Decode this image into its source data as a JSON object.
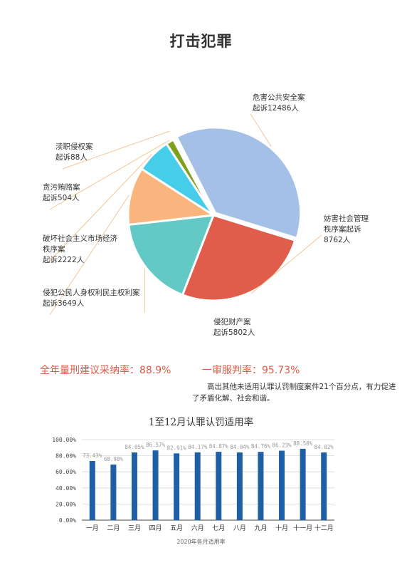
{
  "page": {
    "title": "打击犯罪",
    "adoption_rate": "全年量刑建议采纳率：88.9%",
    "first_instance_rate": "一审服判率：95.73%",
    "note": "高出其他未适用认罪认罚制度案件21个百分点，有力促进了矛盾化解、社会和谐。",
    "bar_title": "1至12月认罪认罚适用率",
    "bar_caption": "2020年各月适用率"
  },
  "chart_data": [
    {
      "type": "pie",
      "unit": "人",
      "slices": [
        {
          "label_lines": [
            "危害公共安全案",
            "起诉12486人"
          ],
          "value": 12486,
          "color": "#a5c0e6"
        },
        {
          "label_lines": [
            "妨害社会管理",
            "秩序案起诉",
            "8762人"
          ],
          "value": 8762,
          "color": "#e05c4b"
        },
        {
          "label_lines": [
            "侵犯财产案",
            "起诉5802人"
          ],
          "value": 5802,
          "color": "#62c9c4"
        },
        {
          "label_lines": [
            "侵犯公民人身权利民主权利案",
            "起诉3649人"
          ],
          "value": 3649,
          "color": "#fab57e"
        },
        {
          "label_lines": [
            "破坏社会主义市场经济",
            "秩序案",
            "起诉2222人"
          ],
          "value": 2222,
          "color": "#46cdea"
        },
        {
          "label_lines": [
            "贪污贿赂案",
            "起诉504人"
          ],
          "value": 504,
          "color": "#7fa01c"
        },
        {
          "label_lines": [
            "渎职侵权案",
            "起诉88人"
          ],
          "value": 88,
          "color": "#e06174"
        }
      ]
    },
    {
      "type": "bar",
      "title": "1至12月认罪认罚适用率",
      "categories": [
        "一月",
        "二月",
        "三月",
        "四月",
        "五月",
        "六月",
        "七月",
        "八月",
        "九月",
        "十月",
        "十一月",
        "十二月"
      ],
      "values": [
        73.43,
        68.98,
        84.05,
        86.57,
        82.91,
        84.17,
        84.87,
        84.04,
        84.76,
        86.23,
        88.58,
        84.02
      ],
      "value_labels": [
        "73.43%",
        "68.98%",
        "84.05%",
        "86.57%",
        "82.91%",
        "84.17%",
        "84.87%",
        "84.04%",
        "84.76%",
        "86.23%",
        "88.58%",
        "84.02%"
      ],
      "ylim": [
        0,
        100
      ],
      "yticks": [
        "0.00%",
        "20.00%",
        "40.00%",
        "60.00%",
        "80.00%",
        "100.00%"
      ],
      "bar_color": "#1f5fa6",
      "grid": true,
      "caption": "2020年各月适用率"
    }
  ]
}
